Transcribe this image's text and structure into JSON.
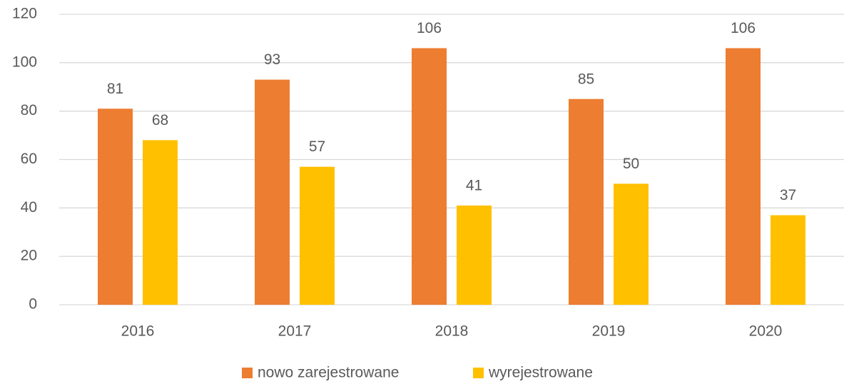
{
  "chart_data": {
    "type": "bar",
    "categories": [
      "2016",
      "2017",
      "2018",
      "2019",
      "2020"
    ],
    "series": [
      {
        "name": "nowo zarejestrowane",
        "color": "#ed7d31",
        "values": [
          81,
          93,
          106,
          85,
          106
        ]
      },
      {
        "name": "wyrejestrowane",
        "color": "#ffc000",
        "values": [
          68,
          57,
          41,
          50,
          37
        ]
      }
    ],
    "ylim": [
      0,
      120
    ],
    "yticks": [
      0,
      20,
      40,
      60,
      80,
      100,
      120
    ],
    "grid": true,
    "legend": "bottom"
  }
}
